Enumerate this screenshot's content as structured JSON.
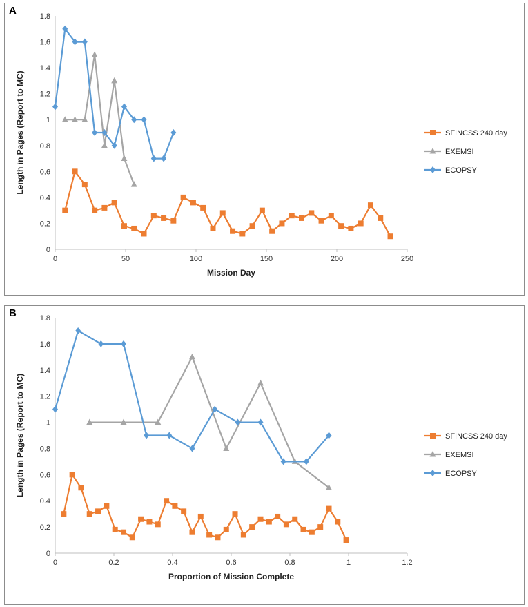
{
  "chart_data": [
    {
      "panel_label": "A",
      "type": "line",
      "title": "",
      "xlabel": "Mission Day",
      "ylabel": "Length in Pages (Report to MC)",
      "xlim": [
        0,
        250
      ],
      "ylim": [
        0,
        1.8
      ],
      "xticks": [
        0,
        50,
        100,
        150,
        200,
        250
      ],
      "yticks": [
        0,
        0.2,
        0.4,
        0.6,
        0.8,
        1,
        1.2,
        1.4,
        1.6,
        1.8
      ],
      "xtick_labels": [
        "0",
        "50",
        "100",
        "150",
        "200",
        "250"
      ],
      "ytick_labels": [
        "0",
        "0.2",
        "0.4",
        "0.6",
        "0.8",
        "1",
        "1.2",
        "1.4",
        "1.6",
        "1.8"
      ],
      "grid": false,
      "legend_position": "right",
      "series": [
        {
          "name": "SFINCSS 240 day",
          "color": "#ed7d31",
          "marker": "square",
          "x": [
            7,
            14,
            21,
            28,
            35,
            42,
            49,
            56,
            63,
            70,
            77,
            84,
            91,
            98,
            105,
            112,
            119,
            126,
            133,
            140,
            147,
            154,
            161,
            168,
            175,
            182,
            189,
            196,
            203,
            210,
            217,
            224,
            231,
            238
          ],
          "y": [
            0.3,
            0.6,
            0.5,
            0.3,
            0.32,
            0.36,
            0.18,
            0.16,
            0.12,
            0.26,
            0.24,
            0.22,
            0.4,
            0.36,
            0.32,
            0.16,
            0.28,
            0.14,
            0.12,
            0.18,
            0.3,
            0.14,
            0.2,
            0.26,
            0.24,
            0.28,
            0.22,
            0.26,
            0.18,
            0.16,
            0.2,
            0.34,
            0.24,
            0.1
          ]
        },
        {
          "name": "EXEMSI",
          "color": "#a5a5a5",
          "marker": "triangle",
          "x": [
            7,
            14,
            21,
            28,
            35,
            42,
            49,
            56
          ],
          "y": [
            1,
            1,
            1,
            1.5,
            0.8,
            1.3,
            0.7,
            0.5
          ]
        },
        {
          "name": "ECOPSY",
          "color": "#5b9bd5",
          "marker": "diamond",
          "x": [
            0,
            7,
            14,
            21,
            28,
            35,
            42,
            49,
            56,
            63,
            70,
            77,
            84
          ],
          "y": [
            1.1,
            1.7,
            1.6,
            1.6,
            0.9,
            0.9,
            0.8,
            1.1,
            1,
            1,
            0.7,
            0.7,
            0.9
          ]
        }
      ]
    },
    {
      "panel_label": "B",
      "type": "line",
      "title": "",
      "xlabel": "Proportion of Mission Complete",
      "ylabel": "Length in Pages (Report to MC)",
      "xlim": [
        0,
        1.2
      ],
      "ylim": [
        0,
        1.8
      ],
      "xticks": [
        0,
        0.2,
        0.4,
        0.6,
        0.8,
        1,
        1.2
      ],
      "yticks": [
        0,
        0.2,
        0.4,
        0.6,
        0.8,
        1,
        1.2,
        1.4,
        1.6,
        1.8
      ],
      "xtick_labels": [
        "0",
        "0.2",
        "0.4",
        "0.6",
        "0.8",
        "1",
        "1.2"
      ],
      "ytick_labels": [
        "0",
        "0.2",
        "0.4",
        "0.6",
        "0.8",
        "1",
        "1.2",
        "1.4",
        "1.6",
        "1.8"
      ],
      "grid": false,
      "legend_position": "right",
      "series": [
        {
          "name": "SFINCSS 240 day",
          "color": "#ed7d31",
          "marker": "square",
          "x": [
            0.029,
            0.058,
            0.088,
            0.117,
            0.146,
            0.175,
            0.204,
            0.233,
            0.263,
            0.292,
            0.321,
            0.35,
            0.379,
            0.408,
            0.438,
            0.467,
            0.496,
            0.525,
            0.554,
            0.583,
            0.613,
            0.642,
            0.671,
            0.7,
            0.729,
            0.758,
            0.788,
            0.817,
            0.846,
            0.875,
            0.904,
            0.933,
            0.963,
            0.992
          ],
          "y": [
            0.3,
            0.6,
            0.5,
            0.3,
            0.32,
            0.36,
            0.18,
            0.16,
            0.12,
            0.26,
            0.24,
            0.22,
            0.4,
            0.36,
            0.32,
            0.16,
            0.28,
            0.14,
            0.12,
            0.18,
            0.3,
            0.14,
            0.2,
            0.26,
            0.24,
            0.28,
            0.22,
            0.26,
            0.18,
            0.16,
            0.2,
            0.34,
            0.24,
            0.1
          ]
        },
        {
          "name": "EXEMSI",
          "color": "#a5a5a5",
          "marker": "triangle",
          "x": [
            0.117,
            0.233,
            0.35,
            0.467,
            0.583,
            0.7,
            0.817,
            0.933
          ],
          "y": [
            1,
            1,
            1,
            1.5,
            0.8,
            1.3,
            0.7,
            0.5
          ]
        },
        {
          "name": "ECOPSY",
          "color": "#5b9bd5",
          "marker": "diamond",
          "x": [
            0,
            0.078,
            0.156,
            0.233,
            0.311,
            0.389,
            0.467,
            0.544,
            0.622,
            0.7,
            0.778,
            0.856,
            0.933
          ],
          "y": [
            1.1,
            1.7,
            1.6,
            1.6,
            0.9,
            0.9,
            0.8,
            1.1,
            1,
            1,
            0.7,
            0.7,
            0.9
          ]
        }
      ]
    }
  ]
}
